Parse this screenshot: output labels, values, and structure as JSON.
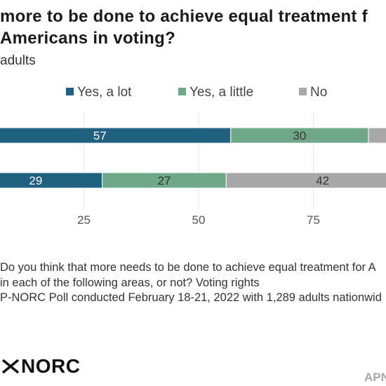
{
  "title_lines": [
    "more to be done to achieve equal treatment f",
    "Americans in voting?"
  ],
  "subtitle": "adults",
  "notes": [
    "Do you think that more needs to be done to achieve equal treatment for A",
    " in each of the following areas, or not? Voting rights",
    "P-NORC Poll conducted February 18-21, 2022 with 1,289 adults nationwid"
  ],
  "logo_text": "NORC",
  "brand_text": "APN",
  "colors": {
    "yes_a_lot": "#1f5f7f",
    "yes_a_little": "#6fa888",
    "no": "#a8a8a8"
  },
  "chart_data": {
    "type": "bar",
    "orientation": "horizontal",
    "stacked": true,
    "xlim": [
      0,
      100
    ],
    "x_ticks": [
      0,
      25,
      50,
      75,
      100
    ],
    "x_tick_labels": [
      "25",
      "50",
      "75"
    ],
    "grid": true,
    "legend_position": "top",
    "series": [
      {
        "name": "Yes, a lot",
        "values": [
          57,
          29
        ]
      },
      {
        "name": "Yes, a little",
        "values": [
          30,
          27
        ]
      },
      {
        "name": "No",
        "values": [
          13,
          42
        ]
      }
    ],
    "data_labels": [
      [
        "57",
        "30",
        ""
      ],
      [
        "29",
        "27",
        "42"
      ]
    ]
  }
}
